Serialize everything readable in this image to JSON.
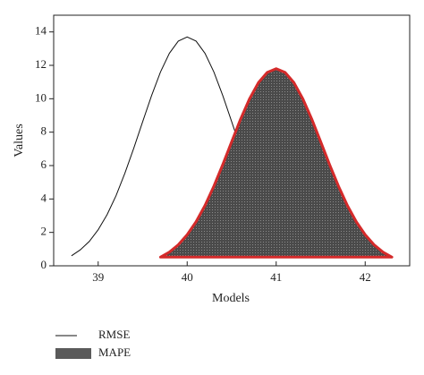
{
  "chart_data": {
    "type": "line",
    "x_label": "Models",
    "y_label": "Values",
    "xlim": [
      38.5,
      42.5
    ],
    "ylim": [
      0,
      15
    ],
    "xticks": [
      39,
      40,
      41,
      42
    ],
    "yticks": [
      0,
      2,
      4,
      6,
      8,
      10,
      12,
      14
    ],
    "series": [
      {
        "name": "RMSE",
        "kind": "line",
        "color": "#111111",
        "x": [
          38.7,
          38.8,
          38.9,
          39.0,
          39.1,
          39.2,
          39.3,
          39.4,
          39.5,
          39.6,
          39.7,
          39.8,
          39.9,
          40.0,
          40.1,
          40.2,
          40.3,
          40.4,
          40.5,
          40.6,
          40.7,
          40.8,
          40.9,
          41.0,
          41.1,
          41.2,
          41.3
        ],
        "values": [
          0.6,
          0.96,
          1.46,
          2.16,
          3.06,
          4.19,
          5.54,
          7.04,
          8.63,
          10.19,
          11.6,
          12.72,
          13.45,
          13.7,
          13.45,
          12.72,
          11.6,
          10.19,
          8.63,
          7.04,
          5.54,
          4.19,
          3.06,
          2.16,
          1.46,
          0.96,
          0.6
        ]
      },
      {
        "name": "MAPE",
        "kind": "area",
        "color": "#5a5a5a",
        "edge_color": "#d42a2a",
        "x": [
          39.7,
          39.8,
          39.9,
          40.0,
          40.1,
          40.2,
          40.3,
          40.4,
          40.5,
          40.6,
          40.7,
          40.8,
          40.9,
          41.0,
          41.1,
          41.2,
          41.3,
          41.4,
          41.5,
          41.6,
          41.7,
          41.8,
          41.9,
          42.0,
          42.1,
          42.2,
          42.3
        ],
        "values": [
          0.52,
          0.82,
          1.26,
          1.86,
          2.64,
          3.61,
          4.77,
          6.06,
          7.43,
          8.78,
          9.99,
          10.96,
          11.58,
          11.8,
          11.58,
          10.96,
          9.99,
          8.78,
          7.43,
          6.06,
          4.77,
          3.61,
          2.64,
          1.86,
          1.26,
          0.82,
          0.52
        ]
      }
    ]
  }
}
